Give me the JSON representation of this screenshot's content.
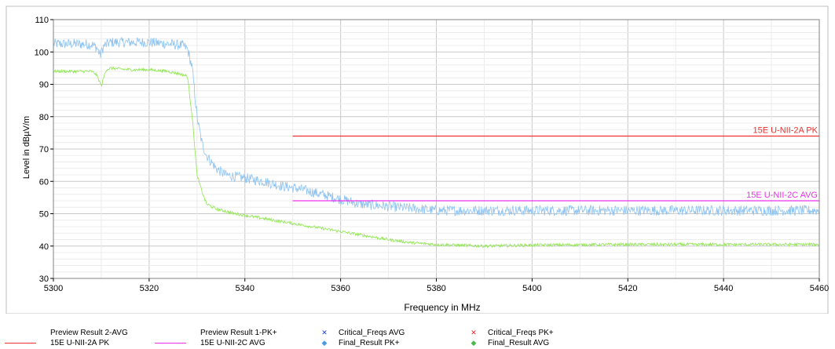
{
  "chart_data": {
    "type": "line",
    "xlabel": "Frequency in MHz",
    "ylabel": "Level in dBµV/m",
    "xlim": [
      5300,
      5460
    ],
    "ylim": [
      30,
      110
    ],
    "x_ticks": [
      5300,
      5320,
      5340,
      5360,
      5380,
      5400,
      5420,
      5440,
      5460
    ],
    "y_ticks": [
      30,
      40,
      50,
      60,
      70,
      80,
      90,
      100,
      110
    ],
    "grid": true,
    "series": [
      {
        "name": "Preview Result 1-PK+",
        "color": "#8ec3f0",
        "points": [
          [
            5300,
            102.5
          ],
          [
            5305,
            102.5
          ],
          [
            5308,
            102.3
          ],
          [
            5309,
            101.5
          ],
          [
            5309.8,
            99
          ],
          [
            5310.5,
            101.8
          ],
          [
            5312,
            103
          ],
          [
            5316,
            103
          ],
          [
            5320,
            103
          ],
          [
            5324,
            102.5
          ],
          [
            5327,
            102
          ],
          [
            5328,
            101
          ],
          [
            5329,
            95
          ],
          [
            5330,
            80
          ],
          [
            5331,
            72
          ],
          [
            5332,
            68
          ],
          [
            5334,
            64
          ],
          [
            5336,
            62
          ],
          [
            5340,
            61
          ],
          [
            5344,
            60
          ],
          [
            5348,
            58.5
          ],
          [
            5352,
            57.5
          ],
          [
            5356,
            56
          ],
          [
            5360,
            54.5
          ],
          [
            5364,
            53
          ],
          [
            5368,
            52.5
          ],
          [
            5372,
            52
          ],
          [
            5376,
            51.5
          ],
          [
            5380,
            51
          ],
          [
            5390,
            51
          ],
          [
            5400,
            51
          ],
          [
            5420,
            51
          ],
          [
            5440,
            51
          ],
          [
            5460,
            51
          ]
        ]
      },
      {
        "name": "Preview Result 2-AVG",
        "color": "#8ee64e",
        "points": [
          [
            5300,
            94
          ],
          [
            5305,
            94
          ],
          [
            5308,
            94
          ],
          [
            5309,
            93
          ],
          [
            5310,
            89.5
          ],
          [
            5311,
            94.5
          ],
          [
            5312,
            95
          ],
          [
            5316,
            94.5
          ],
          [
            5320,
            94.5
          ],
          [
            5324,
            94
          ],
          [
            5327,
            93
          ],
          [
            5328,
            92.5
          ],
          [
            5329,
            80
          ],
          [
            5330,
            62
          ],
          [
            5331,
            57
          ],
          [
            5332,
            53
          ],
          [
            5334,
            51.5
          ],
          [
            5338,
            50
          ],
          [
            5342,
            49
          ],
          [
            5346,
            48
          ],
          [
            5350,
            47
          ],
          [
            5354,
            46
          ],
          [
            5358,
            45
          ],
          [
            5362,
            44
          ],
          [
            5366,
            43
          ],
          [
            5370,
            42
          ],
          [
            5375,
            41
          ],
          [
            5380,
            40.5
          ],
          [
            5390,
            40
          ],
          [
            5400,
            40.3
          ],
          [
            5420,
            40.5
          ],
          [
            5440,
            40.5
          ],
          [
            5460,
            40.5
          ]
        ]
      },
      {
        "name": "15E U-NII-2A PK",
        "color": "#ee3030",
        "points": [
          [
            5350,
            74
          ],
          [
            5460,
            74
          ]
        ]
      },
      {
        "name": "15E U-NII-2C AVG",
        "color": "#ee30ee",
        "points": [
          [
            5350,
            54
          ],
          [
            5460,
            54
          ]
        ]
      }
    ],
    "limit_labels": [
      {
        "text": "15E U-NII-2A PK",
        "y": 74,
        "color": "#ee3030"
      },
      {
        "text": "15E U-NII-2C AVG",
        "y": 54,
        "color": "#ee30ee"
      }
    ],
    "legend": {
      "position": "bottom",
      "entries": [
        {
          "label": "Preview Result 2-AVG",
          "symbol": "none",
          "color": ""
        },
        {
          "label": "Preview Result 1-PK+",
          "symbol": "none",
          "color": ""
        },
        {
          "label": "Critical_Freqs AVG",
          "symbol": "x",
          "color": "#1c3fd0"
        },
        {
          "label": "Critical_Freqs PK+",
          "symbol": "x",
          "color": "#e02020"
        },
        {
          "label": "15E U-NII-2A PK",
          "symbol": "line",
          "color": "#ee3030"
        },
        {
          "label": "15E U-NII-2C AVG",
          "symbol": "line",
          "color": "#ee30ee"
        },
        {
          "label": "Final_Result PK+",
          "symbol": "diamond",
          "color": "#4a9be0"
        },
        {
          "label": "Final_Result AVG",
          "symbol": "diamond",
          "color": "#4cb84c"
        }
      ]
    }
  }
}
